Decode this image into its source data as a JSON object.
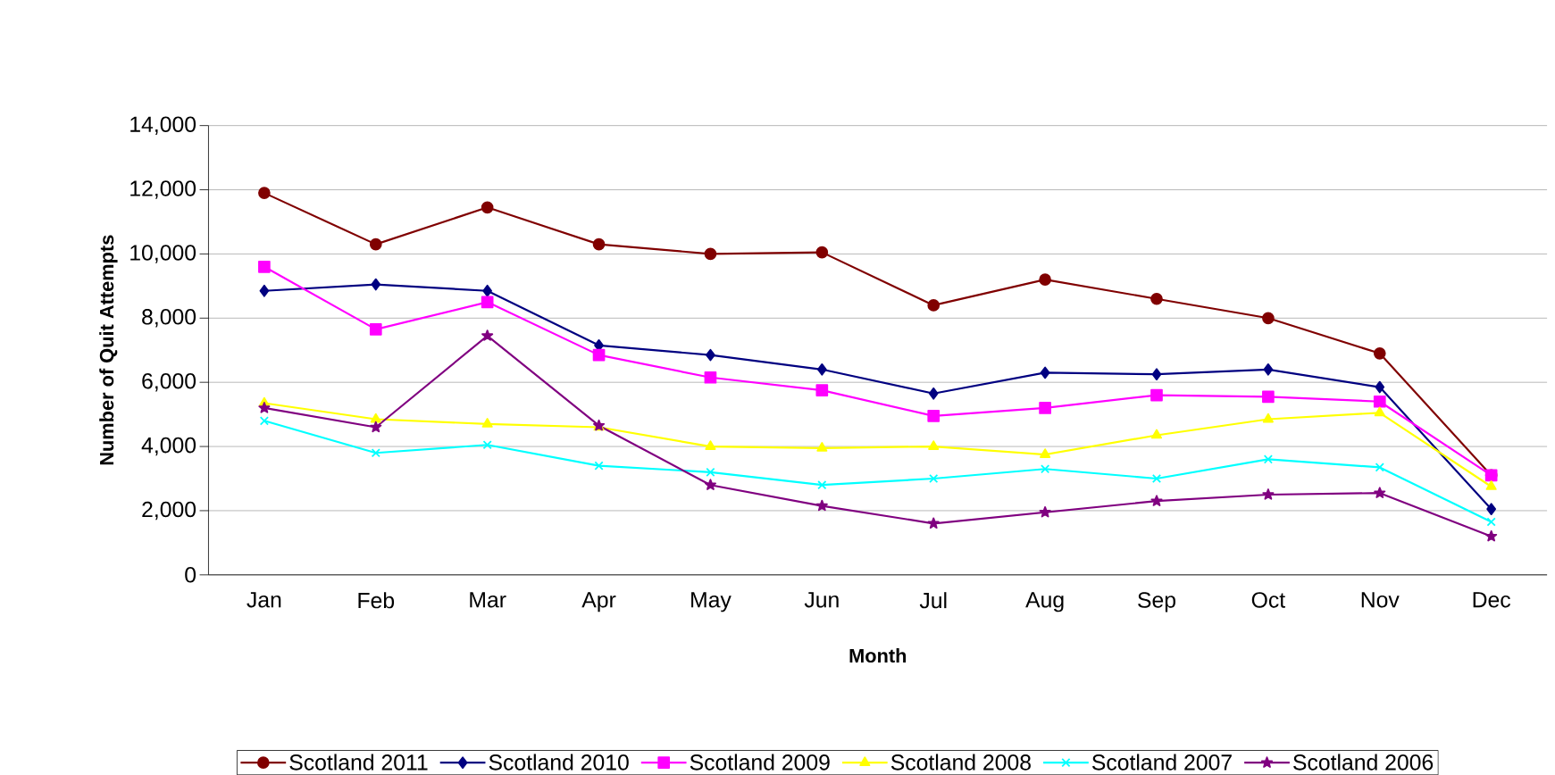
{
  "chart_data": {
    "type": "line",
    "xlabel": "Month",
    "ylabel": "Number of Quit Attempts",
    "categories": [
      "Jan",
      "Feb",
      "Mar",
      "Apr",
      "May",
      "Jun",
      "Jul",
      "Aug",
      "Sep",
      "Oct",
      "Nov",
      "Dec"
    ],
    "ylim": [
      0,
      14000
    ],
    "yticks": [
      {
        "value": 0,
        "label": "0"
      },
      {
        "value": 2000,
        "label": "2,000"
      },
      {
        "value": 4000,
        "label": "4,000"
      },
      {
        "value": 6000,
        "label": "6,000"
      },
      {
        "value": 8000,
        "label": "8,000"
      },
      {
        "value": 10000,
        "label": "10,000"
      },
      {
        "value": 12000,
        "label": "12,000"
      },
      {
        "value": 14000,
        "label": "14,000"
      }
    ],
    "grid": "y",
    "legend": "bottom",
    "line_style": "solid",
    "series": [
      {
        "name": "Scotland 2011",
        "color": "#800000",
        "marker": "circle",
        "values": [
          11900,
          10300,
          11450,
          10300,
          10000,
          10050,
          8400,
          9200,
          8600,
          8000,
          6900,
          3100
        ]
      },
      {
        "name": "Scotland 2010",
        "color": "#000080",
        "marker": "diamond",
        "values": [
          8850,
          9050,
          8850,
          7150,
          6850,
          6400,
          5650,
          6300,
          6250,
          6400,
          5850,
          2050
        ]
      },
      {
        "name": "Scotland 2009",
        "color": "#ff00ff",
        "marker": "square",
        "values": [
          9600,
          7650,
          8500,
          6850,
          6150,
          5750,
          4950,
          5200,
          5600,
          5550,
          5400,
          3100
        ]
      },
      {
        "name": "Scotland 2008",
        "color": "#ffff00",
        "marker": "triangle",
        "values": [
          5350,
          4850,
          4700,
          4600,
          4000,
          3950,
          4000,
          3750,
          4350,
          4850,
          5050,
          2750
        ]
      },
      {
        "name": "Scotland 2007",
        "color": "#00ffff",
        "marker": "cross",
        "values": [
          4800,
          3800,
          4050,
          3400,
          3200,
          2800,
          3000,
          3300,
          3000,
          3600,
          3350,
          1650
        ]
      },
      {
        "name": "Scotland 2006",
        "color": "#800080",
        "marker": "star",
        "values": [
          5200,
          4600,
          7450,
          4650,
          2800,
          2150,
          1600,
          1950,
          2300,
          2500,
          2550,
          1200
        ]
      }
    ]
  }
}
